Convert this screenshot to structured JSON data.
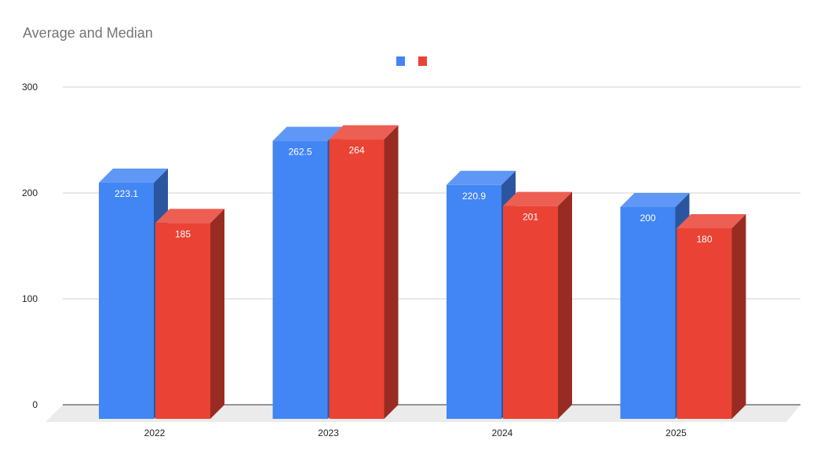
{
  "chart_data": {
    "type": "bar",
    "title": "Average and Median",
    "categories": [
      "2022",
      "2023",
      "2024",
      "2025"
    ],
    "series": [
      {
        "values": [
          223.1,
          262.5,
          220.9,
          200
        ],
        "labels": [
          "223.1",
          "262.5",
          "220.9",
          "200"
        ],
        "color": "#4285f4"
      },
      {
        "values": [
          185,
          264,
          201,
          180
        ],
        "labels": [
          "185",
          "264",
          "201",
          "180"
        ],
        "color": "#ea4335"
      }
    ],
    "ylim": [
      0,
      300
    ],
    "yticks": [
      "0",
      "100",
      "200",
      "300"
    ],
    "grid": true,
    "legend": "top",
    "style": "3d"
  }
}
